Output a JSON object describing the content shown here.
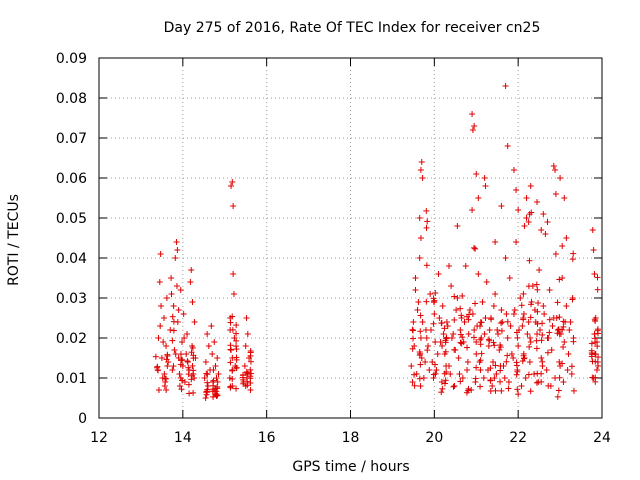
{
  "chart_data": {
    "type": "scatter",
    "title": "Day 275 of 2016, Rate Of TEC Index for receiver cn25",
    "xlabel": "GPS time / hours",
    "ylabel": "ROTI / TECUs",
    "xlim": [
      12,
      24
    ],
    "ylim": [
      0,
      0.09
    ],
    "x_ticks": [
      12,
      14,
      16,
      18,
      20,
      22,
      24
    ],
    "x_tick_labels": [
      "12",
      "14",
      "16",
      "18",
      "20",
      "22",
      "24"
    ],
    "y_ticks": [
      0,
      0.01,
      0.02,
      0.03,
      0.04,
      0.05,
      0.06,
      0.07,
      0.08,
      0.09
    ],
    "y_tick_labels": [
      "0",
      "0.01",
      "0.02",
      "0.03",
      "0.04",
      "0.05",
      "0.06",
      "0.07",
      "0.08",
      "0.09"
    ],
    "grid": true,
    "marker": "+",
    "marker_color": "#e00000",
    "clusters": [
      {
        "x_start": 13.35,
        "x_end": 14.35,
        "y_min": 0.006,
        "y_max": 0.045
      },
      {
        "x_start": 14.5,
        "x_end": 14.9,
        "y_min": 0.005,
        "y_max": 0.023
      },
      {
        "x_start": 15.1,
        "x_end": 15.3,
        "y_min": 0.007,
        "y_max": 0.059
      },
      {
        "x_start": 15.4,
        "x_end": 15.65,
        "y_min": 0.007,
        "y_max": 0.026
      },
      {
        "x_start": 19.4,
        "x_end": 23.35,
        "y_min": 0.005,
        "y_max": 0.083
      },
      {
        "x_start": 23.75,
        "x_end": 23.95,
        "y_min": 0.008,
        "y_max": 0.047
      }
    ],
    "series": [
      {
        "name": "ROTI",
        "x": [
          13.4,
          13.42,
          13.45,
          13.47,
          13.5,
          13.52,
          13.55,
          13.57,
          13.6,
          13.62,
          13.65,
          13.7,
          13.72,
          13.75,
          13.78,
          13.8,
          13.82,
          13.85,
          13.88,
          13.9,
          13.92,
          13.95,
          13.98,
          14.0,
          14.02,
          14.05,
          14.08,
          14.1,
          14.15,
          14.18,
          14.2,
          14.22,
          14.25,
          14.28,
          14.3,
          13.43,
          13.48,
          13.53,
          13.58,
          13.63,
          13.73,
          13.83,
          13.87,
          13.93,
          14.03,
          14.12,
          14.23,
          13.46,
          13.56,
          13.86,
          13.9,
          14.27,
          14.52,
          14.55,
          14.6,
          14.62,
          14.65,
          14.68,
          14.7,
          14.72,
          14.75,
          14.78,
          14.8,
          14.82,
          14.85,
          14.58,
          14.73,
          14.83,
          15.12,
          15.15,
          15.18,
          15.2,
          15.22,
          15.25,
          15.15,
          15.18,
          15.2,
          15.13,
          15.23,
          15.18,
          15.45,
          15.48,
          15.5,
          15.52,
          15.55,
          15.58,
          15.5,
          15.55,
          19.45,
          19.5,
          19.55,
          19.6,
          19.65,
          19.7,
          19.75,
          19.8,
          19.85,
          19.9,
          19.95,
          20.0,
          20.05,
          20.1,
          20.15,
          20.2,
          20.25,
          20.3,
          20.35,
          20.4,
          20.45,
          20.5,
          20.55,
          20.6,
          20.65,
          20.7,
          20.75,
          20.8,
          20.85,
          20.9,
          20.95,
          21.0,
          21.05,
          21.1,
          21.15,
          21.2,
          21.25,
          21.3,
          21.35,
          21.4,
          21.45,
          21.5,
          21.55,
          21.6,
          21.65,
          21.7,
          21.75,
          21.8,
          21.85,
          21.9,
          21.95,
          22.0,
          22.05,
          22.1,
          22.15,
          22.2,
          22.25,
          22.3,
          22.35,
          22.4,
          22.45,
          22.5,
          22.55,
          22.6,
          22.65,
          22.7,
          22.75,
          22.8,
          22.85,
          22.9,
          22.95,
          23.0,
          23.05,
          23.1,
          23.15,
          23.2,
          23.25,
          23.3,
          19.48,
          19.58,
          19.68,
          19.78,
          19.88,
          19.98,
          20.08,
          20.18,
          20.28,
          20.38,
          20.48,
          20.58,
          20.68,
          20.78,
          20.88,
          20.98,
          21.08,
          21.18,
          21.28,
          21.38,
          21.48,
          21.58,
          21.68,
          21.78,
          21.88,
          21.98,
          22.08,
          22.18,
          22.28,
          22.38,
          22.48,
          22.58,
          22.68,
          22.78,
          22.88,
          22.98,
          23.08,
          23.18,
          23.28,
          19.52,
          19.62,
          19.72,
          19.82,
          19.92,
          20.02,
          20.12,
          20.22,
          20.32,
          20.42,
          20.52,
          20.62,
          20.72,
          20.82,
          20.92,
          21.02,
          21.12,
          21.22,
          21.32,
          21.42,
          21.52,
          21.62,
          21.72,
          21.82,
          21.92,
          22.02,
          22.12,
          22.22,
          22.32,
          22.42,
          22.52,
          22.62,
          22.72,
          22.82,
          22.92,
          23.02,
          23.12,
          23.22,
          23.32,
          19.68,
          19.7,
          19.72,
          19.65,
          19.68,
          20.9,
          20.92,
          20.95,
          21.0,
          21.05,
          21.2,
          21.22,
          21.7,
          21.75,
          21.9,
          21.95,
          22.0,
          22.2,
          22.25,
          22.3,
          22.55,
          22.6,
          22.85,
          22.88,
          22.9,
          23.0,
          23.05,
          23.1,
          19.55,
          20.35,
          20.55,
          21.45,
          21.6,
          22.15,
          22.45,
          22.7,
          23.15,
          23.78,
          23.8,
          23.82,
          23.85,
          23.88,
          23.9,
          23.8,
          23.85,
          23.88,
          23.82
        ],
        "y": [
          0.012,
          0.02,
          0.034,
          0.041,
          0.015,
          0.01,
          0.025,
          0.008,
          0.018,
          0.03,
          0.014,
          0.022,
          0.035,
          0.012,
          0.028,
          0.017,
          0.04,
          0.044,
          0.024,
          0.015,
          0.011,
          0.032,
          0.019,
          0.013,
          0.026,
          0.009,
          0.016,
          0.021,
          0.012,
          0.034,
          0.037,
          0.018,
          0.011,
          0.024,
          0.015,
          0.007,
          0.028,
          0.019,
          0.009,
          0.013,
          0.031,
          0.016,
          0.042,
          0.008,
          0.02,
          0.014,
          0.029,
          0.023,
          0.011,
          0.033,
          0.027,
          0.01,
          0.01,
          0.014,
          0.008,
          0.018,
          0.012,
          0.023,
          0.016,
          0.009,
          0.019,
          0.013,
          0.006,
          0.015,
          0.011,
          0.021,
          0.012,
          0.009,
          0.01,
          0.017,
          0.008,
          0.036,
          0.031,
          0.013,
          0.058,
          0.059,
          0.053,
          0.025,
          0.02,
          0.012,
          0.009,
          0.013,
          0.018,
          0.025,
          0.011,
          0.015,
          0.008,
          0.021,
          0.013,
          0.024,
          0.035,
          0.027,
          0.04,
          0.015,
          0.01,
          0.022,
          0.018,
          0.031,
          0.014,
          0.026,
          0.012,
          0.036,
          0.019,
          0.028,
          0.016,
          0.024,
          0.013,
          0.033,
          0.021,
          0.017,
          0.03,
          0.011,
          0.025,
          0.019,
          0.038,
          0.014,
          0.027,
          0.052,
          0.022,
          0.016,
          0.036,
          0.012,
          0.029,
          0.021,
          0.034,
          0.018,
          0.025,
          0.014,
          0.031,
          0.022,
          0.017,
          0.027,
          0.013,
          0.04,
          0.02,
          0.035,
          0.016,
          0.026,
          0.044,
          0.018,
          0.03,
          0.023,
          0.015,
          0.05,
          0.024,
          0.019,
          0.033,
          0.027,
          0.021,
          0.037,
          0.015,
          0.028,
          0.046,
          0.02,
          0.032,
          0.017,
          0.025,
          0.041,
          0.022,
          0.013,
          0.035,
          0.019,
          0.028,
          0.016,
          0.024,
          0.03,
          0.009,
          0.011,
          0.02,
          0.014,
          0.012,
          0.01,
          0.016,
          0.009,
          0.013,
          0.011,
          0.008,
          0.015,
          0.01,
          0.012,
          0.007,
          0.009,
          0.014,
          0.01,
          0.012,
          0.008,
          0.011,
          0.013,
          0.01,
          0.009,
          0.015,
          0.012,
          0.008,
          0.01,
          0.014,
          0.011,
          0.009,
          0.013,
          0.012,
          0.008,
          0.01,
          0.014,
          0.009,
          0.012,
          0.011,
          0.018,
          0.029,
          0.024,
          0.02,
          0.022,
          0.019,
          0.025,
          0.021,
          0.023,
          0.02,
          0.027,
          0.022,
          0.024,
          0.021,
          0.026,
          0.023,
          0.02,
          0.025,
          0.022,
          0.028,
          0.021,
          0.024,
          0.026,
          0.023,
          0.027,
          0.022,
          0.025,
          0.021,
          0.029,
          0.024,
          0.022,
          0.026,
          0.02,
          0.023,
          0.025,
          0.021,
          0.024,
          0.022,
          0.02,
          0.062,
          0.064,
          0.06,
          0.05,
          0.045,
          0.076,
          0.072,
          0.073,
          0.061,
          0.055,
          0.06,
          0.058,
          0.083,
          0.068,
          0.062,
          0.057,
          0.052,
          0.055,
          0.049,
          0.058,
          0.047,
          0.051,
          0.063,
          0.062,
          0.056,
          0.06,
          0.043,
          0.055,
          0.032,
          0.038,
          0.048,
          0.044,
          0.053,
          0.048,
          0.054,
          0.049,
          0.045,
          0.047,
          0.042,
          0.036,
          0.025,
          0.019,
          0.014,
          0.01,
          0.016,
          0.012,
          0.021
        ]
      }
    ]
  }
}
